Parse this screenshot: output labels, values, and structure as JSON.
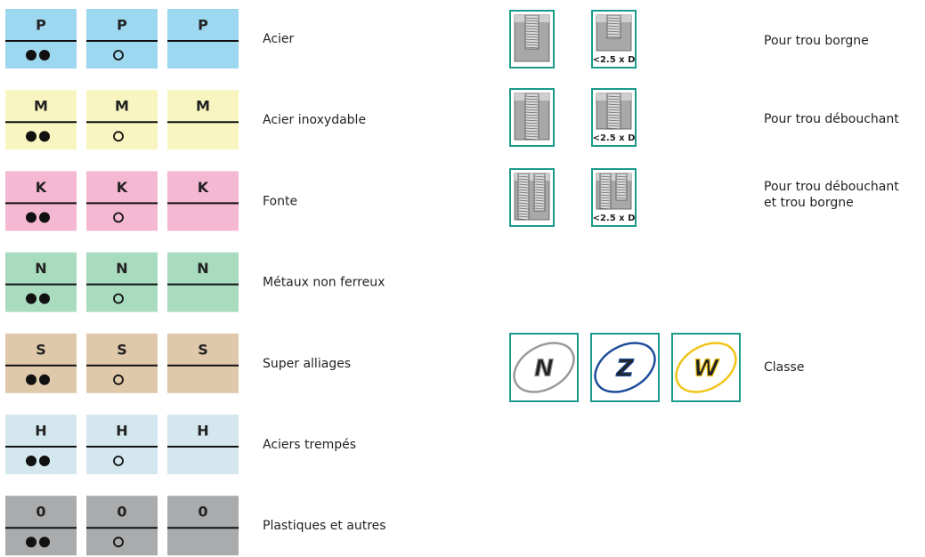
{
  "materials": [
    {
      "letter": "P",
      "label": "Acier",
      "color": "#9dd8f0"
    },
    {
      "letter": "M",
      "label": "Acier inoxydable",
      "color": "#f9f5c0"
    },
    {
      "letter": "K",
      "label": "Fonte",
      "color": "#f5b8d3"
    },
    {
      "letter": "N",
      "label": "Métaux non ferreux",
      "color": "#a9dbbf"
    },
    {
      "letter": "S",
      "label": "Super alliages",
      "color": "#e0c8ab"
    },
    {
      "letter": "H",
      "label": "Aciers trempés",
      "color": "#d4e7ef"
    },
    {
      "letter": "0",
      "label": "Plastiques et autres",
      "color": "#a9abad"
    }
  ],
  "depth_label": "<2.5 x D",
  "holes": [
    {
      "lines": [
        "Pour trou borgne"
      ]
    },
    {
      "lines": [
        "Pour trou débouchant"
      ]
    },
    {
      "lines": [
        "Pour trou débouchant",
        "et trou borgne"
      ]
    }
  ],
  "classes": [
    {
      "letter": "N",
      "color": "#9a9a9a"
    },
    {
      "letter": "Z",
      "color": "#1f4e9c"
    },
    {
      "letter": "W",
      "color": "#f0c419"
    }
  ],
  "classes_label": "Classe"
}
